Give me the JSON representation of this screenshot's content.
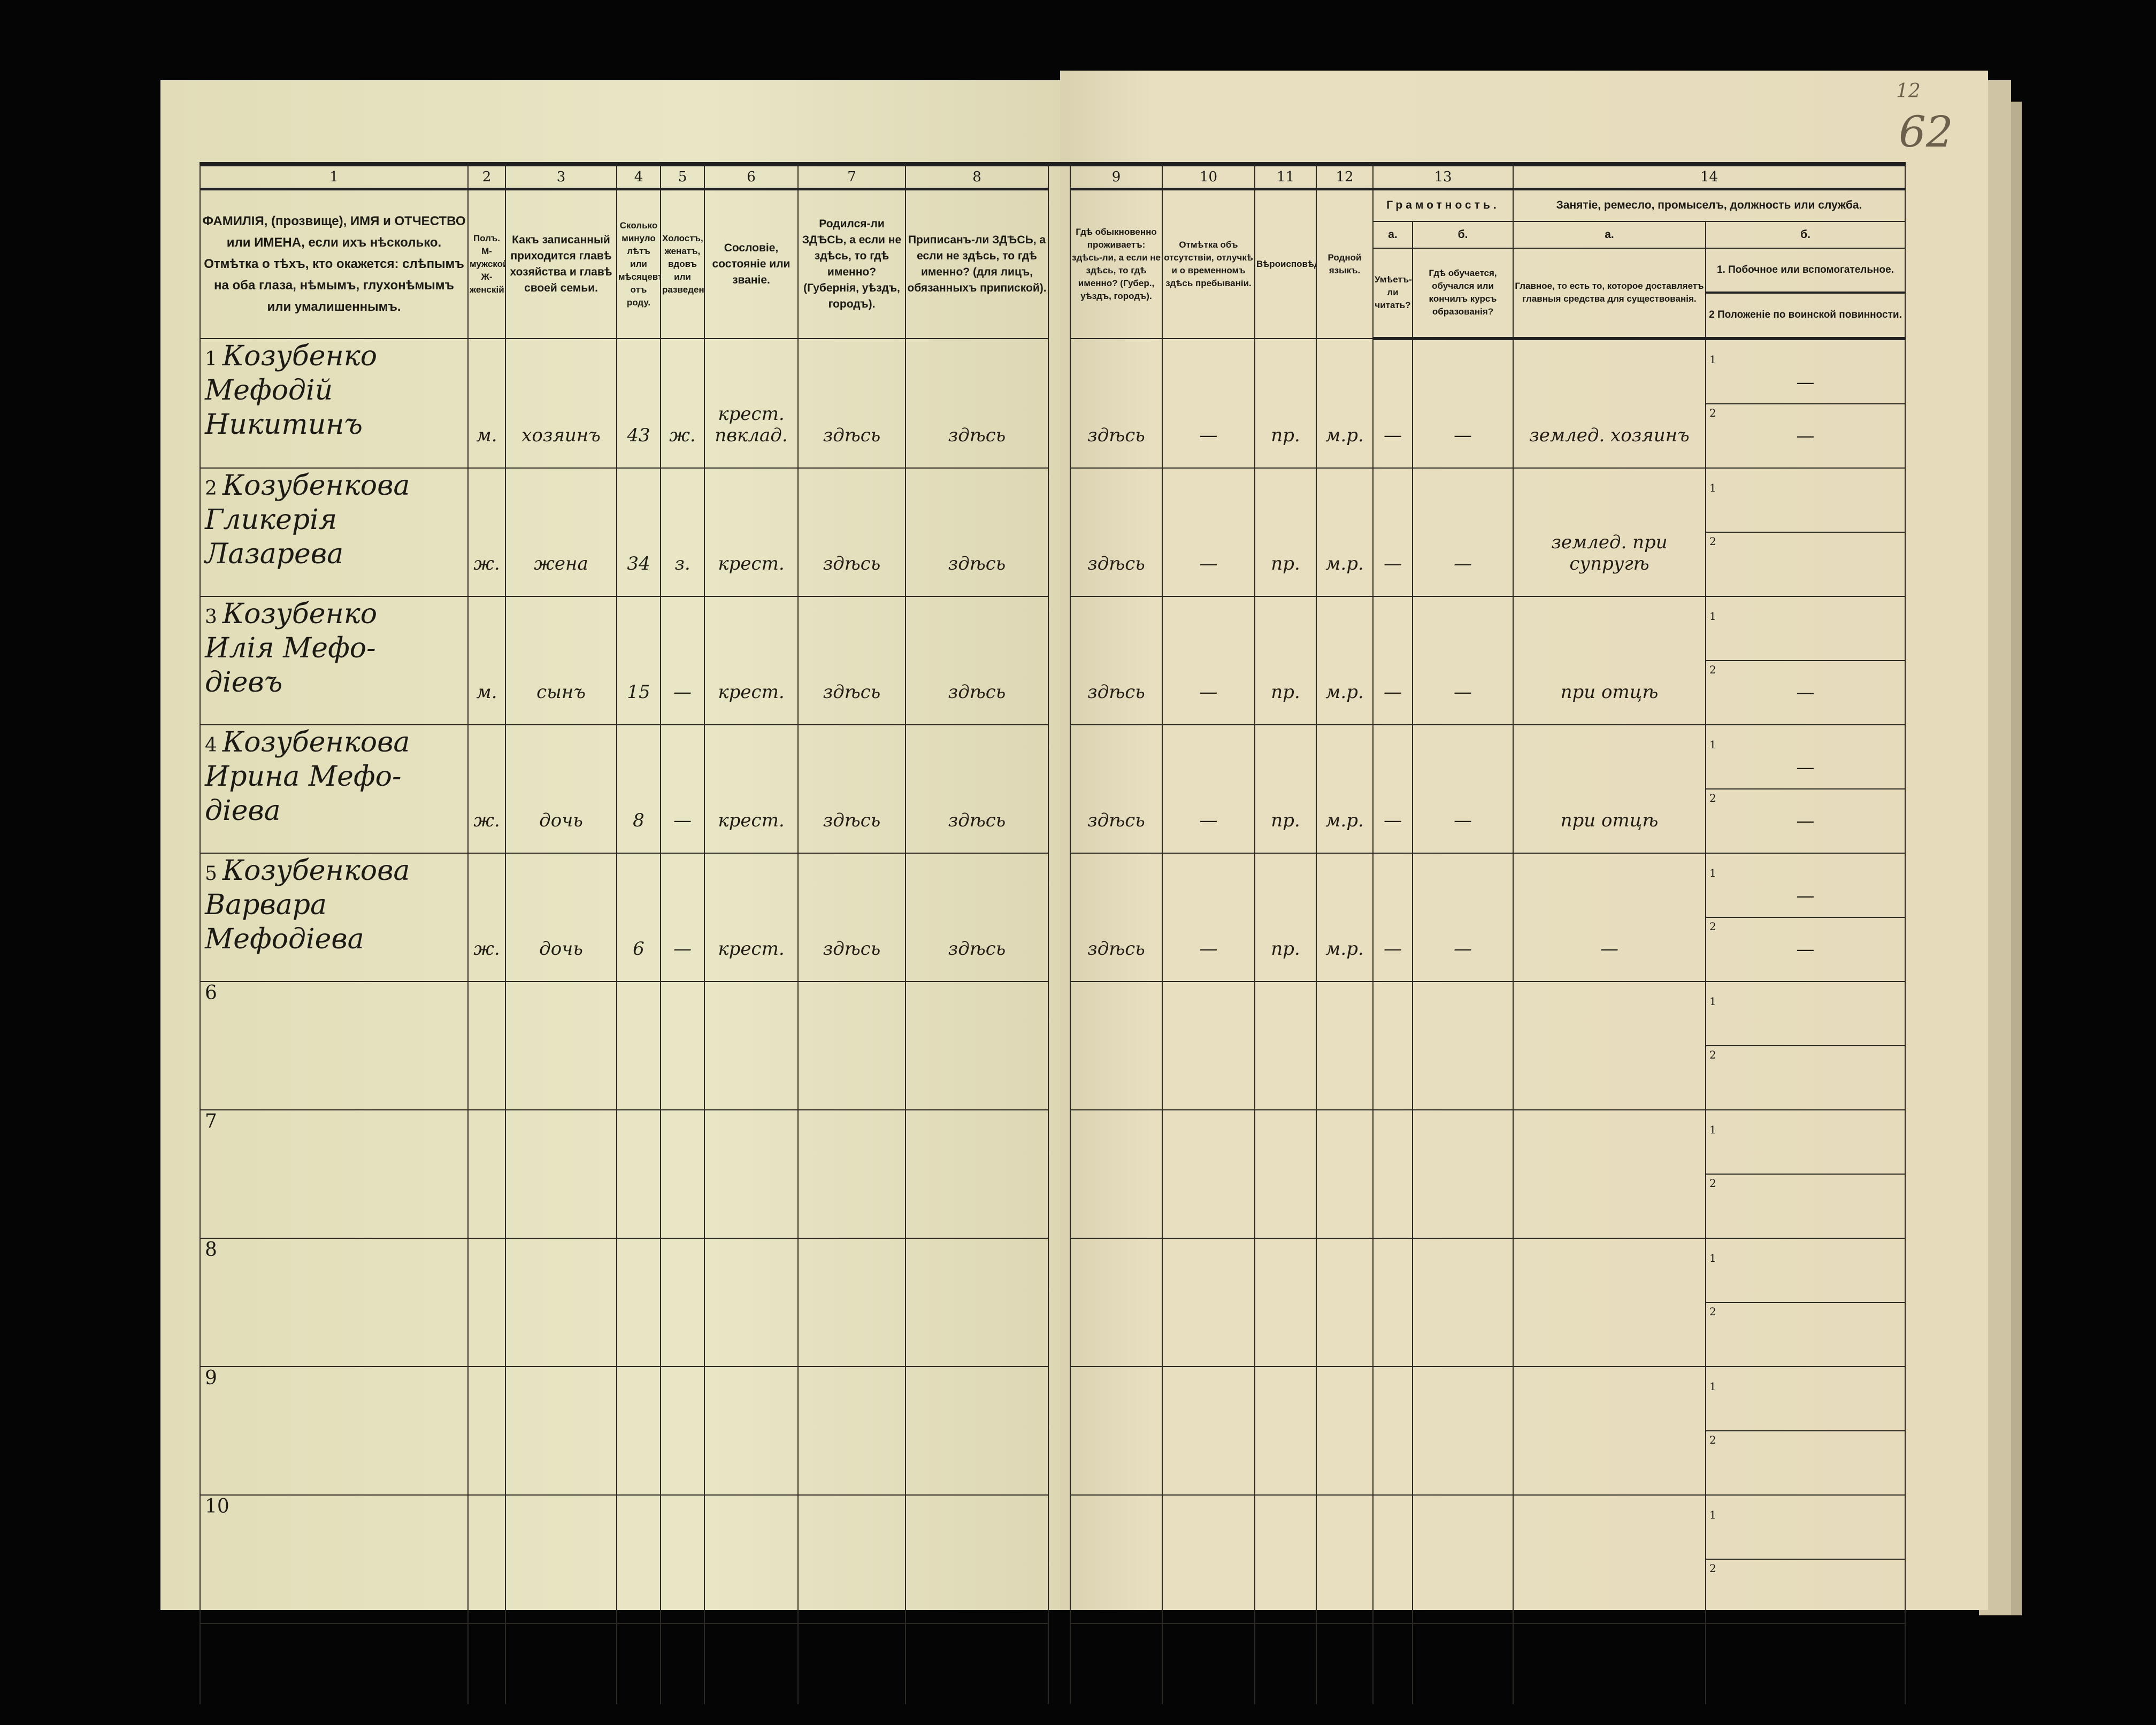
{
  "page_number": "62",
  "page_number_small": "12",
  "header": {
    "col_numbers": [
      "1",
      "2",
      "3",
      "4",
      "5",
      "6",
      "7",
      "8",
      "9",
      "10",
      "11",
      "12",
      "13",
      "14"
    ],
    "col1": "ФАМИЛІЯ, (прозвище), ИМЯ и ОТЧЕСТВО или ИМЕНА, если ихъ нѣсколько. Отмѣтка о тѣхъ, кто окажется: слѣпымъ на оба глаза, нѣмымъ, глухонѣмымъ или умалишеннымъ.",
    "col2": "Полъ. М-мужской. Ж-женскій.",
    "col3": "Какъ записанный приходится главѣ хозяйства и главѣ своей семьи.",
    "col4": "Сколько минуло лѣтъ или мѣсяцевъ отъ роду.",
    "col5": "Холостъ, женатъ, вдовъ или разведенъ.",
    "col6": "Сословіе, состояніе или званіе.",
    "col7": "Родился-ли ЗДѢСЬ, а если не здѣсь, то гдѣ именно? (Губернія, уѣздъ, городъ).",
    "col8": "Приписанъ-ли ЗДѢСЬ, а если не здѣсь, то гдѣ именно? (для лицъ, обязанныхъ припиской).",
    "col9": "Гдѣ обыкновенно проживаетъ: здѣсь-ли, а если не здѣсь, то гдѣ именно? (Губер., уѣздъ, городъ).",
    "col10": "Отмѣтка объ отсутствіи, отлучкѣ и о временномъ здѣсь пребываніи.",
    "col11": "Вѣроисповѣданіе.",
    "col12": "Родной языкъ.",
    "col13": "Грамотность.",
    "col13a_letter": "а.",
    "col13b_letter": "б.",
    "col13a": "Умѣетъ-ли читать?",
    "col13b": "Гдѣ обучается, обучался или кончилъ курсъ образованія?",
    "col14": "Занятіе, ремесло, промыселъ, должность или служба.",
    "col14a_letter": "а.",
    "col14b_letter": "б.",
    "col14a": "Главное, то есть то, которое доставляетъ главныя средства для существованія.",
    "col14b_1": "1. Побочное или вспомогательное.",
    "col14b_2": "2 Положеніе по воинской повинности."
  },
  "rows": [
    {
      "num": "1",
      "name": [
        "Козубенко",
        "Мефодій",
        "Никитинъ"
      ],
      "sex": "м.",
      "relation": "хозяинъ",
      "age": "43",
      "marital": "ж.",
      "estate": "крест. пвклад.",
      "born": "здѣсь",
      "registered": "здѣсь",
      "residence": "здѣсь",
      "absence": "—",
      "religion": "пр.",
      "language": "м.р.",
      "literate": "—",
      "education": "—",
      "occupation": "землед. хозяинъ",
      "side_1": "—",
      "side_2": "—"
    },
    {
      "num": "2",
      "name": [
        "Козубенкова",
        "Гликерія",
        "Лазарева"
      ],
      "sex": "ж.",
      "relation": "жена",
      "age": "34",
      "marital": "з.",
      "estate": "крест.",
      "born": "здѣсь",
      "registered": "здѣсь",
      "residence": "здѣсь",
      "absence": "—",
      "religion": "пр.",
      "language": "м.р.",
      "literate": "—",
      "education": "—",
      "occupation": "землед. при супругѣ",
      "side_1": "",
      "side_2": ""
    },
    {
      "num": "3",
      "name": [
        "Козубенко",
        "Илія Мефо-",
        "діевъ"
      ],
      "sex": "м.",
      "relation": "сынъ",
      "age": "15",
      "marital": "—",
      "estate": "крест.",
      "born": "здѣсь",
      "registered": "здѣсь",
      "residence": "здѣсь",
      "absence": "—",
      "religion": "пр.",
      "language": "м.р.",
      "literate": "—",
      "education": "—",
      "occupation": "при отцѣ",
      "side_1": "",
      "side_2": "—"
    },
    {
      "num": "4",
      "name": [
        "Козубенкова",
        "Ирина Мефо-",
        "діева"
      ],
      "sex": "ж.",
      "relation": "дочь",
      "age": "8",
      "marital": "—",
      "estate": "крест.",
      "born": "здѣсь",
      "registered": "здѣсь",
      "residence": "здѣсь",
      "absence": "—",
      "religion": "пр.",
      "language": "м.р.",
      "literate": "—",
      "education": "—",
      "occupation": "при отцѣ",
      "side_1": "—",
      "side_2": "—"
    },
    {
      "num": "5",
      "name": [
        "Козубенкова",
        "Варвара",
        "Мефодіева"
      ],
      "sex": "ж.",
      "relation": "дочь",
      "age": "6",
      "marital": "—",
      "estate": "крест.",
      "born": "здѣсь",
      "registered": "здѣсь",
      "residence": "здѣсь",
      "absence": "—",
      "religion": "пр.",
      "language": "м.р.",
      "literate": "—",
      "education": "—",
      "occupation": "—",
      "side_1": "—",
      "side_2": "—"
    },
    {
      "num": "6",
      "name": []
    },
    {
      "num": "7",
      "name": []
    },
    {
      "num": "8",
      "name": []
    },
    {
      "num": "9",
      "name": []
    },
    {
      "num": "10",
      "name": []
    }
  ],
  "subrow_labels": [
    "1",
    "2"
  ]
}
